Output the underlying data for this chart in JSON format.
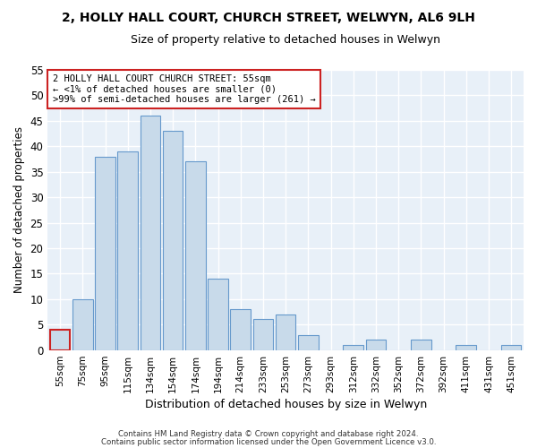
{
  "title1": "2, HOLLY HALL COURT, CHURCH STREET, WELWYN, AL6 9LH",
  "title2": "Size of property relative to detached houses in Welwyn",
  "xlabel": "Distribution of detached houses by size in Welwyn",
  "ylabel": "Number of detached properties",
  "categories": [
    "55sqm",
    "75sqm",
    "95sqm",
    "115sqm",
    "134sqm",
    "154sqm",
    "174sqm",
    "194sqm",
    "214sqm",
    "233sqm",
    "253sqm",
    "273sqm",
    "293sqm",
    "312sqm",
    "332sqm",
    "352sqm",
    "372sqm",
    "392sqm",
    "411sqm",
    "431sqm",
    "451sqm"
  ],
  "values": [
    4,
    10,
    38,
    39,
    46,
    43,
    37,
    14,
    8,
    6,
    7,
    3,
    0,
    1,
    2,
    0,
    2,
    0,
    1,
    0,
    1
  ],
  "bar_color": "#c8daea",
  "bar_edge_color": "#6699cc",
  "highlight_bar_index": 0,
  "highlight_bar_edge_color": "#cc2222",
  "ylim": [
    0,
    55
  ],
  "yticks": [
    0,
    5,
    10,
    15,
    20,
    25,
    30,
    35,
    40,
    45,
    50,
    55
  ],
  "annotation_text": "2 HOLLY HALL COURT CHURCH STREET: 55sqm\n← <1% of detached houses are smaller (0)\n>99% of semi-detached houses are larger (261) →",
  "annotation_box_facecolor": "#ffffff",
  "annotation_box_edgecolor": "#cc2222",
  "footer1": "Contains HM Land Registry data © Crown copyright and database right 2024.",
  "footer2": "Contains public sector information licensed under the Open Government Licence v3.0.",
  "bg_color": "#ffffff",
  "plot_bg_color": "#e8f0f8",
  "grid_color": "#ffffff"
}
